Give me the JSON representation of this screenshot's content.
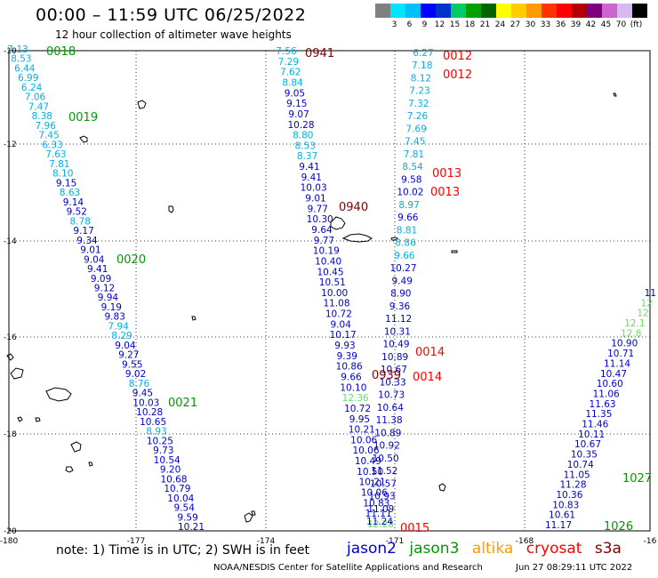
{
  "title": "00:00 – 11:59 UTC 06/25/2022",
  "subtitle": "12 hour collection of altimeter wave heights",
  "colorbar": {
    "colors": [
      "#808080",
      "#00e5ff",
      "#00bfff",
      "#0000ff",
      "#0033cc",
      "#00cc66",
      "#00a000",
      "#006400",
      "#ffff00",
      "#ffcc00",
      "#ff9900",
      "#ff3300",
      "#ff0000",
      "#b30000",
      "#800080",
      "#cc66cc",
      "#d8b8f0",
      "#000000"
    ],
    "labels": [
      "3",
      "6",
      "9",
      "12",
      "15",
      "18",
      "21",
      "24",
      "27",
      "30",
      "33",
      "36",
      "39",
      "42",
      "45",
      "70",
      "(ft)"
    ]
  },
  "map": {
    "lon_ticks": [
      "-180",
      "-177",
      "-174",
      "-171",
      "-168",
      "-16"
    ],
    "lat_ticks": [
      "-10",
      "-12",
      "-14",
      "-16",
      "-18",
      "-20"
    ]
  },
  "colors": {
    "jason2": "#0000cc",
    "jason3": "#009900",
    "altika": "#ff9900",
    "cryosat": "#ff0000",
    "s3a": "#800000",
    "light_blue": "#00b0e0",
    "light_green": "#66dd66"
  },
  "tracks": [
    {
      "points": [
        [
          "7.13",
          "lb"
        ],
        [
          "8.53",
          "lb"
        ],
        [
          "6.44",
          "lb"
        ],
        [
          "6.99",
          "lb"
        ],
        [
          "6.24",
          "lb"
        ],
        [
          "7.06",
          "lb"
        ],
        [
          "7.47",
          "lb"
        ],
        [
          "8.38",
          "lb"
        ],
        [
          "7.96",
          "lb"
        ],
        [
          "7.45",
          "lb"
        ],
        [
          "6.33",
          "lb"
        ],
        [
          "7.63",
          "lb"
        ],
        [
          "7.81",
          "lb"
        ],
        [
          "8.10",
          "lb"
        ],
        [
          "9.15",
          "b"
        ],
        [
          "8.63",
          "lb"
        ],
        [
          "9.14",
          "b"
        ],
        [
          "9.52",
          "b"
        ],
        [
          "8.78",
          "lb"
        ],
        [
          "9.17",
          "b"
        ],
        [
          "9.34",
          "b"
        ],
        [
          "9.01",
          "b"
        ],
        [
          "9.04",
          "b"
        ],
        [
          "9.41",
          "b"
        ],
        [
          "9.09",
          "b"
        ],
        [
          "9.12",
          "b"
        ],
        [
          "9.94",
          "b"
        ],
        [
          "9.19",
          "b"
        ],
        [
          "9.83",
          "b"
        ],
        [
          "7.94",
          "lb"
        ],
        [
          "8.29",
          "lb"
        ],
        [
          "9.04",
          "b"
        ],
        [
          "9.27",
          "b"
        ],
        [
          "9.55",
          "b"
        ],
        [
          "9.02",
          "b"
        ],
        [
          "8.76",
          "lb"
        ],
        [
          "9.45",
          "b"
        ],
        [
          "10.03",
          "b"
        ],
        [
          "10.28",
          "b"
        ],
        [
          "10.65",
          "b"
        ],
        [
          "8.93",
          "lb"
        ],
        [
          "10.25",
          "b"
        ],
        [
          "9.73",
          "b"
        ],
        [
          "10.54",
          "b"
        ],
        [
          "9.20",
          "b"
        ],
        [
          "10.68",
          "b"
        ],
        [
          "10.79",
          "b"
        ],
        [
          "10.04",
          "b"
        ],
        [
          "9.54",
          "b"
        ],
        [
          "9.59",
          "b"
        ],
        [
          "10.21",
          "b"
        ]
      ]
    },
    {
      "points": [
        [
          "7.56",
          "lb"
        ],
        [
          "7.29",
          "lb"
        ],
        [
          "7.62",
          "lb"
        ],
        [
          "8.84",
          "lb"
        ],
        [
          "9.05",
          "b"
        ],
        [
          "9.15",
          "b"
        ],
        [
          "9.07",
          "b"
        ],
        [
          "10.28",
          "b"
        ],
        [
          "8.80",
          "lb"
        ],
        [
          "8.53",
          "lb"
        ],
        [
          "8.37",
          "lb"
        ],
        [
          "9.41",
          "b"
        ],
        [
          "9.41",
          "b"
        ],
        [
          "10.03",
          "b"
        ],
        [
          "9.01",
          "b"
        ],
        [
          "9.77",
          "b"
        ],
        [
          "10.30",
          "b"
        ],
        [
          "9.64",
          "b"
        ],
        [
          "9.77",
          "b"
        ],
        [
          "10.19",
          "b"
        ],
        [
          "10.40",
          "b"
        ],
        [
          "10.45",
          "b"
        ],
        [
          "10.51",
          "b"
        ],
        [
          "10.00",
          "b"
        ],
        [
          "11.08",
          "b"
        ],
        [
          "10.72",
          "b"
        ],
        [
          "9.04",
          "b"
        ],
        [
          "10.17",
          "b"
        ],
        [
          "9.93",
          "b"
        ],
        [
          "9.39",
          "b"
        ],
        [
          "10.86",
          "b"
        ],
        [
          "9.66",
          "b"
        ],
        [
          "10.10",
          "b"
        ],
        [
          "12.36",
          "lg"
        ],
        [
          "10.72",
          "b"
        ],
        [
          "9.95",
          "b"
        ],
        [
          "10.21",
          "b"
        ],
        [
          "10.06",
          "b"
        ],
        [
          "10.06",
          "b"
        ],
        [
          "10.49",
          "b"
        ],
        [
          "10.50",
          "b"
        ],
        [
          "10.21",
          "b"
        ],
        [
          "10.06",
          "b"
        ],
        [
          "10.83",
          "b"
        ],
        [
          "11.11",
          "b"
        ],
        [
          "12.28",
          "lg"
        ]
      ]
    },
    {
      "points": [
        [
          "6.27",
          "lb"
        ],
        [
          "7.18",
          "lb"
        ],
        [
          "8.12",
          "lb"
        ],
        [
          "7.23",
          "lb"
        ],
        [
          "7.32",
          "lb"
        ],
        [
          "7.26",
          "lb"
        ],
        [
          "7.69",
          "lb"
        ],
        [
          "7.45",
          "lb"
        ],
        [
          "7.81",
          "lb"
        ],
        [
          "8.54",
          "lb"
        ],
        [
          "9.58",
          "b"
        ],
        [
          "10.02",
          "b"
        ],
        [
          "8.97",
          "lb"
        ],
        [
          "9.66",
          "b"
        ],
        [
          "8.81",
          "lb"
        ],
        [
          "8.86",
          "lb"
        ],
        [
          "9.66",
          "lb"
        ],
        [
          "10.27",
          "b"
        ],
        [
          "9.49",
          "b"
        ],
        [
          "8.90",
          "b"
        ],
        [
          "9.36",
          "b"
        ],
        [
          "11.12",
          "b"
        ],
        [
          "10.31",
          "b"
        ],
        [
          "10.49",
          "b"
        ],
        [
          "10.89",
          "b"
        ],
        [
          "10.67",
          "b"
        ],
        [
          "10.33",
          "b"
        ],
        [
          "10.73",
          "b"
        ],
        [
          "10.64",
          "b"
        ],
        [
          "11.38",
          "b"
        ],
        [
          "10.89",
          "b"
        ],
        [
          "10.92",
          "b"
        ],
        [
          "10.50",
          "b"
        ],
        [
          "11.52",
          "b"
        ],
        [
          "10.57",
          "b"
        ],
        [
          "10.93",
          "b"
        ],
        [
          "11.09",
          "b"
        ],
        [
          "11.24",
          "b"
        ]
      ]
    },
    {
      "points": [
        [
          "11",
          "b"
        ],
        [
          "12",
          "lg"
        ],
        [
          "12",
          "lg"
        ],
        [
          "12.1",
          "lg"
        ],
        [
          "12.8",
          "lg"
        ],
        [
          "10.90",
          "b"
        ],
        [
          "10.71",
          "b"
        ],
        [
          "11.14",
          "b"
        ],
        [
          "10.47",
          "b"
        ],
        [
          "10.60",
          "b"
        ],
        [
          "11.06",
          "b"
        ],
        [
          "11.63",
          "b"
        ],
        [
          "11.35",
          "b"
        ],
        [
          "11.46",
          "b"
        ],
        [
          "10.11",
          "b"
        ],
        [
          "10.67",
          "b"
        ],
        [
          "10.35",
          "b"
        ],
        [
          "10.74",
          "b"
        ],
        [
          "11.05",
          "b"
        ],
        [
          "11.28",
          "b"
        ],
        [
          "10.36",
          "b"
        ],
        [
          "10.83",
          "b"
        ],
        [
          "10.61",
          "b"
        ],
        [
          "11.17",
          "b"
        ]
      ]
    }
  ],
  "time_labels": [
    {
      "text": "0018",
      "sat": "jason3"
    },
    {
      "text": "0019",
      "sat": "jason3"
    },
    {
      "text": "0020",
      "sat": "jason3"
    },
    {
      "text": "0021",
      "sat": "jason3"
    },
    {
      "text": "0941",
      "sat": "s3a"
    },
    {
      "text": "0940",
      "sat": "s3a"
    },
    {
      "text": "0939",
      "sat": "s3a"
    },
    {
      "text": "0012",
      "sat": "cryosat"
    },
    {
      "text": "0012",
      "sat": "cryosat"
    },
    {
      "text": "0013",
      "sat": "cryosat"
    },
    {
      "text": "0013",
      "sat": "cryosat"
    },
    {
      "text": "0014",
      "sat": "cryosat"
    },
    {
      "text": "0014",
      "sat": "cryosat"
    },
    {
      "text": "0015",
      "sat": "cryosat"
    },
    {
      "text": "1027",
      "sat": "jason3"
    },
    {
      "text": "1026",
      "sat": "jason3"
    }
  ],
  "footer": {
    "note": "note:  1) Time is in UTC;  2) SWH is in feet",
    "legend": [
      "jason2",
      "jason3",
      "altika",
      "cryosat",
      "s3a"
    ],
    "credit": "NOAA/NESDIS Center for Satellite Applications and Research",
    "timestamp": "Jun 27 08:29:11 UTC 2022"
  }
}
